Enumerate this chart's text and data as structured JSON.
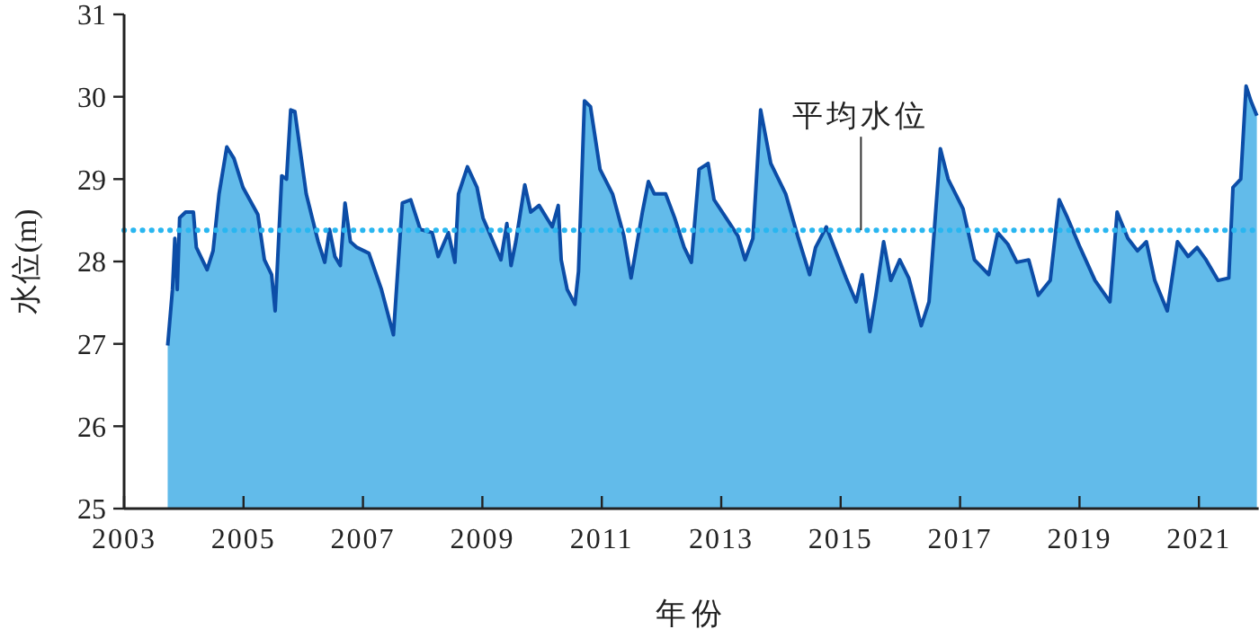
{
  "chart_data": {
    "type": "area",
    "xlabel": "年份",
    "ylabel": "水位(m)",
    "xlim": [
      2003,
      2022
    ],
    "xticks": [
      2003,
      2005,
      2007,
      2009,
      2011,
      2013,
      2015,
      2017,
      2019,
      2021
    ],
    "ylim": [
      25,
      31
    ],
    "yticks": [
      25,
      26,
      27,
      28,
      29,
      30,
      31
    ],
    "grid": false,
    "series": [
      {
        "color": "#62bbea",
        "x": [
          2003.73,
          2003.81,
          2003.85,
          2003.89,
          2003.93,
          2004.03,
          2004.16,
          2004.21,
          2004.39,
          2004.49,
          2004.59,
          2004.72,
          2004.84,
          2004.99,
          2005.24,
          2005.35,
          2005.47,
          2005.53,
          2005.64,
          2005.72,
          2005.79,
          2005.86,
          2006.05,
          2006.25,
          2006.36,
          2006.44,
          2006.53,
          2006.62,
          2006.7,
          2006.79,
          2006.9,
          2007.1,
          2007.31,
          2007.51,
          2007.66,
          2007.8,
          2007.96,
          2008.16,
          2008.26,
          2008.43,
          2008.54,
          2008.6,
          2008.75,
          2008.91,
          2009.01,
          2009.31,
          2009.41,
          2009.48,
          2009.56,
          2009.71,
          2009.81,
          2009.95,
          2010.17,
          2010.27,
          2010.32,
          2010.42,
          2010.55,
          2010.61,
          2010.71,
          2010.81,
          2010.97,
          2011.18,
          2011.37,
          2011.49,
          2011.68,
          2011.78,
          2011.88,
          2012.07,
          2012.22,
          2012.38,
          2012.5,
          2012.63,
          2012.78,
          2012.88,
          2013.08,
          2013.28,
          2013.4,
          2013.53,
          2013.66,
          2013.83,
          2014.08,
          2014.28,
          2014.48,
          2014.58,
          2014.76,
          2014.93,
          2015.09,
          2015.26,
          2015.36,
          2015.49,
          2015.59,
          2015.72,
          2015.84,
          2015.99,
          2016.14,
          2016.35,
          2016.48,
          2016.54,
          2016.67,
          2016.8,
          2017.05,
          2017.24,
          2017.48,
          2017.63,
          2017.8,
          2017.95,
          2018.15,
          2018.31,
          2018.51,
          2018.66,
          2018.8,
          2019.01,
          2019.26,
          2019.51,
          2019.63,
          2019.81,
          2019.97,
          2020.12,
          2020.26,
          2020.47,
          2020.64,
          2020.82,
          2020.97,
          2021.12,
          2021.32,
          2021.5,
          2021.57,
          2021.7,
          2021.79,
          2021.87,
          2021.97
        ],
        "values": [
          26.98,
          27.66,
          28.28,
          27.66,
          28.53,
          28.6,
          28.6,
          28.17,
          27.9,
          28.13,
          28.82,
          29.39,
          29.25,
          28.9,
          28.57,
          28.02,
          27.84,
          27.4,
          29.04,
          29.0,
          29.84,
          29.82,
          28.82,
          28.24,
          27.99,
          28.39,
          28.06,
          27.95,
          28.71,
          28.24,
          28.17,
          28.1,
          27.66,
          27.11,
          28.71,
          28.75,
          28.39,
          28.35,
          28.06,
          28.35,
          27.99,
          28.82,
          29.15,
          28.9,
          28.53,
          28.02,
          28.46,
          27.95,
          28.24,
          28.93,
          28.6,
          28.68,
          28.42,
          28.68,
          28.02,
          27.66,
          27.48,
          27.88,
          29.95,
          29.88,
          29.12,
          28.82,
          28.31,
          27.8,
          28.6,
          28.97,
          28.82,
          28.82,
          28.53,
          28.17,
          27.99,
          29.12,
          29.19,
          28.75,
          28.53,
          28.31,
          28.02,
          28.28,
          29.84,
          29.19,
          28.82,
          28.31,
          27.84,
          28.17,
          28.42,
          28.1,
          27.8,
          27.51,
          27.84,
          27.15,
          27.59,
          28.24,
          27.77,
          28.02,
          27.8,
          27.22,
          27.51,
          28.1,
          29.37,
          29.0,
          28.64,
          28.02,
          27.84,
          28.35,
          28.21,
          27.99,
          28.02,
          27.59,
          27.77,
          28.75,
          28.53,
          28.17,
          27.77,
          27.51,
          28.6,
          28.28,
          28.13,
          28.24,
          27.77,
          27.4,
          28.24,
          28.06,
          28.17,
          28.02,
          27.77,
          27.8,
          28.9,
          29.0,
          30.13,
          29.95,
          29.77
        ]
      }
    ],
    "ref_lines": [
      {
        "axis": "y",
        "value": 28.38,
        "color": "#29b6f0",
        "line_style": "dotted"
      }
    ],
    "annotations": [
      {
        "text": "平均水位",
        "x": 2015.34,
        "y": 28.38
      }
    ]
  }
}
